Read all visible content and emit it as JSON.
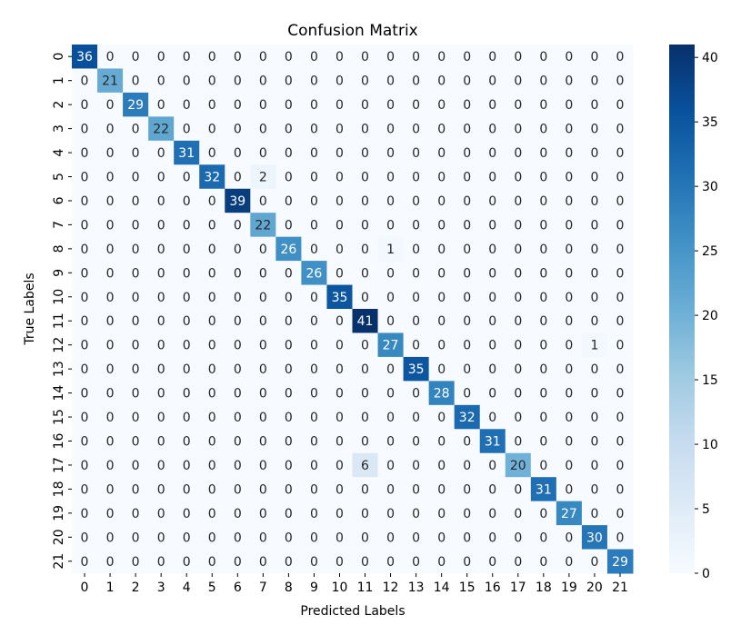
{
  "chart_data": {
    "type": "heatmap",
    "title": "Confusion Matrix",
    "xlabel": "Predicted Labels",
    "ylabel": "True Labels",
    "x_categories": [
      "0",
      "1",
      "2",
      "3",
      "4",
      "5",
      "6",
      "7",
      "8",
      "9",
      "10",
      "11",
      "12",
      "13",
      "14",
      "15",
      "16",
      "17",
      "18",
      "19",
      "20",
      "21"
    ],
    "y_categories": [
      "0",
      "1",
      "2",
      "3",
      "4",
      "5",
      "6",
      "7",
      "8",
      "9",
      "10",
      "11",
      "12",
      "13",
      "14",
      "15",
      "16",
      "17",
      "18",
      "19",
      "20",
      "21"
    ],
    "matrix": [
      [
        36,
        0,
        0,
        0,
        0,
        0,
        0,
        0,
        0,
        0,
        0,
        0,
        0,
        0,
        0,
        0,
        0,
        0,
        0,
        0,
        0,
        0
      ],
      [
        0,
        21,
        0,
        0,
        0,
        0,
        0,
        0,
        0,
        0,
        0,
        0,
        0,
        0,
        0,
        0,
        0,
        0,
        0,
        0,
        0,
        0
      ],
      [
        0,
        0,
        29,
        0,
        0,
        0,
        0,
        0,
        0,
        0,
        0,
        0,
        0,
        0,
        0,
        0,
        0,
        0,
        0,
        0,
        0,
        0
      ],
      [
        0,
        0,
        0,
        22,
        0,
        0,
        0,
        0,
        0,
        0,
        0,
        0,
        0,
        0,
        0,
        0,
        0,
        0,
        0,
        0,
        0,
        0
      ],
      [
        0,
        0,
        0,
        0,
        31,
        0,
        0,
        0,
        0,
        0,
        0,
        0,
        0,
        0,
        0,
        0,
        0,
        0,
        0,
        0,
        0,
        0
      ],
      [
        0,
        0,
        0,
        0,
        0,
        32,
        0,
        2,
        0,
        0,
        0,
        0,
        0,
        0,
        0,
        0,
        0,
        0,
        0,
        0,
        0,
        0
      ],
      [
        0,
        0,
        0,
        0,
        0,
        0,
        39,
        0,
        0,
        0,
        0,
        0,
        0,
        0,
        0,
        0,
        0,
        0,
        0,
        0,
        0,
        0
      ],
      [
        0,
        0,
        0,
        0,
        0,
        0,
        0,
        22,
        0,
        0,
        0,
        0,
        0,
        0,
        0,
        0,
        0,
        0,
        0,
        0,
        0,
        0
      ],
      [
        0,
        0,
        0,
        0,
        0,
        0,
        0,
        0,
        26,
        0,
        0,
        0,
        1,
        0,
        0,
        0,
        0,
        0,
        0,
        0,
        0,
        0
      ],
      [
        0,
        0,
        0,
        0,
        0,
        0,
        0,
        0,
        0,
        26,
        0,
        0,
        0,
        0,
        0,
        0,
        0,
        0,
        0,
        0,
        0,
        0
      ],
      [
        0,
        0,
        0,
        0,
        0,
        0,
        0,
        0,
        0,
        0,
        35,
        0,
        0,
        0,
        0,
        0,
        0,
        0,
        0,
        0,
        0,
        0
      ],
      [
        0,
        0,
        0,
        0,
        0,
        0,
        0,
        0,
        0,
        0,
        0,
        41,
        0,
        0,
        0,
        0,
        0,
        0,
        0,
        0,
        0,
        0
      ],
      [
        0,
        0,
        0,
        0,
        0,
        0,
        0,
        0,
        0,
        0,
        0,
        0,
        27,
        0,
        0,
        0,
        0,
        0,
        0,
        0,
        1,
        0
      ],
      [
        0,
        0,
        0,
        0,
        0,
        0,
        0,
        0,
        0,
        0,
        0,
        0,
        0,
        35,
        0,
        0,
        0,
        0,
        0,
        0,
        0,
        0
      ],
      [
        0,
        0,
        0,
        0,
        0,
        0,
        0,
        0,
        0,
        0,
        0,
        0,
        0,
        0,
        28,
        0,
        0,
        0,
        0,
        0,
        0,
        0
      ],
      [
        0,
        0,
        0,
        0,
        0,
        0,
        0,
        0,
        0,
        0,
        0,
        0,
        0,
        0,
        0,
        32,
        0,
        0,
        0,
        0,
        0,
        0
      ],
      [
        0,
        0,
        0,
        0,
        0,
        0,
        0,
        0,
        0,
        0,
        0,
        0,
        0,
        0,
        0,
        0,
        31,
        0,
        0,
        0,
        0,
        0
      ],
      [
        0,
        0,
        0,
        0,
        0,
        0,
        0,
        0,
        0,
        0,
        0,
        6,
        0,
        0,
        0,
        0,
        0,
        20,
        0,
        0,
        0,
        0
      ],
      [
        0,
        0,
        0,
        0,
        0,
        0,
        0,
        0,
        0,
        0,
        0,
        0,
        0,
        0,
        0,
        0,
        0,
        0,
        31,
        0,
        0,
        0
      ],
      [
        0,
        0,
        0,
        0,
        0,
        0,
        0,
        0,
        0,
        0,
        0,
        0,
        0,
        0,
        0,
        0,
        0,
        0,
        0,
        27,
        0,
        0
      ],
      [
        0,
        0,
        0,
        0,
        0,
        0,
        0,
        0,
        0,
        0,
        0,
        0,
        0,
        0,
        0,
        0,
        0,
        0,
        0,
        0,
        30,
        0
      ],
      [
        0,
        0,
        0,
        0,
        0,
        0,
        0,
        0,
        0,
        0,
        0,
        0,
        0,
        0,
        0,
        0,
        0,
        0,
        0,
        0,
        0,
        29
      ]
    ],
    "colormap": "Blues",
    "color_low": "#f7fbff",
    "color_high": "#08306b",
    "vmin": 0,
    "vmax": 41,
    "colorbar_ticks": [
      0,
      5,
      10,
      15,
      20,
      25,
      30,
      35,
      40
    ],
    "grid": false,
    "legend": "colorbar-right"
  }
}
